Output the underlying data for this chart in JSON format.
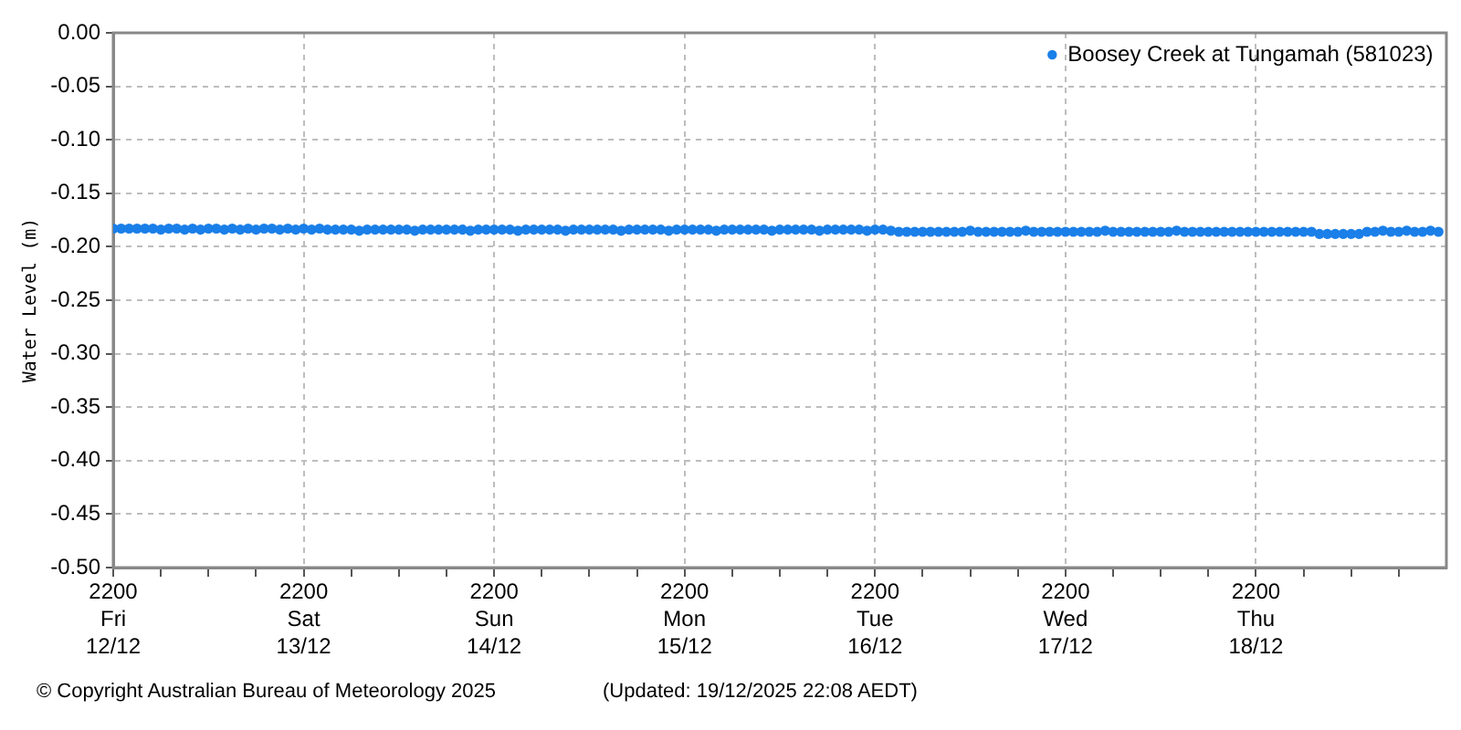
{
  "chart_data": {
    "type": "scatter",
    "ylabel": "Water Level (m)",
    "x": [
      "2025-12-12T22:00",
      "2025-12-12T23:00",
      "2025-12-13T00:00",
      "2025-12-13T01:00",
      "2025-12-13T02:00",
      "2025-12-13T03:00",
      "2025-12-13T04:00",
      "2025-12-13T05:00",
      "2025-12-13T06:00",
      "2025-12-13T07:00",
      "2025-12-13T08:00",
      "2025-12-13T09:00",
      "2025-12-13T10:00",
      "2025-12-13T11:00",
      "2025-12-13T12:00",
      "2025-12-13T13:00",
      "2025-12-13T14:00",
      "2025-12-13T15:00",
      "2025-12-13T16:00",
      "2025-12-13T17:00",
      "2025-12-13T18:00",
      "2025-12-13T19:00",
      "2025-12-13T20:00",
      "2025-12-13T21:00",
      "2025-12-13T22:00",
      "2025-12-13T23:00",
      "2025-12-14T00:00",
      "2025-12-14T01:00",
      "2025-12-14T02:00",
      "2025-12-14T03:00",
      "2025-12-14T04:00",
      "2025-12-14T05:00",
      "2025-12-14T06:00",
      "2025-12-14T07:00",
      "2025-12-14T08:00",
      "2025-12-14T09:00",
      "2025-12-14T10:00",
      "2025-12-14T11:00",
      "2025-12-14T12:00",
      "2025-12-14T13:00",
      "2025-12-14T14:00",
      "2025-12-14T15:00",
      "2025-12-14T16:00",
      "2025-12-14T17:00",
      "2025-12-14T18:00",
      "2025-12-14T19:00",
      "2025-12-14T20:00",
      "2025-12-14T21:00",
      "2025-12-14T22:00",
      "2025-12-14T23:00",
      "2025-12-15T00:00",
      "2025-12-15T01:00",
      "2025-12-15T02:00",
      "2025-12-15T03:00",
      "2025-12-15T04:00",
      "2025-12-15T05:00",
      "2025-12-15T06:00",
      "2025-12-15T07:00",
      "2025-12-15T08:00",
      "2025-12-15T09:00",
      "2025-12-15T10:00",
      "2025-12-15T11:00",
      "2025-12-15T12:00",
      "2025-12-15T13:00",
      "2025-12-15T14:00",
      "2025-12-15T15:00",
      "2025-12-15T16:00",
      "2025-12-15T17:00",
      "2025-12-15T18:00",
      "2025-12-15T19:00",
      "2025-12-15T20:00",
      "2025-12-15T21:00",
      "2025-12-15T22:00",
      "2025-12-15T23:00",
      "2025-12-16T00:00",
      "2025-12-16T01:00",
      "2025-12-16T02:00",
      "2025-12-16T03:00",
      "2025-12-16T04:00",
      "2025-12-16T05:00",
      "2025-12-16T06:00",
      "2025-12-16T07:00",
      "2025-12-16T08:00",
      "2025-12-16T09:00",
      "2025-12-16T10:00",
      "2025-12-16T11:00",
      "2025-12-16T12:00",
      "2025-12-16T13:00",
      "2025-12-16T14:00",
      "2025-12-16T15:00",
      "2025-12-16T16:00",
      "2025-12-16T17:00",
      "2025-12-16T18:00",
      "2025-12-16T19:00",
      "2025-12-16T20:00",
      "2025-12-16T21:00",
      "2025-12-16T22:00",
      "2025-12-16T23:00",
      "2025-12-17T00:00",
      "2025-12-17T01:00",
      "2025-12-17T02:00",
      "2025-12-17T03:00",
      "2025-12-17T04:00",
      "2025-12-17T05:00",
      "2025-12-17T06:00",
      "2025-12-17T07:00",
      "2025-12-17T08:00",
      "2025-12-17T09:00",
      "2025-12-17T10:00",
      "2025-12-17T11:00",
      "2025-12-17T12:00",
      "2025-12-17T13:00",
      "2025-12-17T14:00",
      "2025-12-17T15:00",
      "2025-12-17T16:00",
      "2025-12-17T17:00",
      "2025-12-17T18:00",
      "2025-12-17T19:00",
      "2025-12-17T20:00",
      "2025-12-17T21:00",
      "2025-12-17T22:00",
      "2025-12-17T23:00",
      "2025-12-18T00:00",
      "2025-12-18T01:00",
      "2025-12-18T02:00",
      "2025-12-18T03:00",
      "2025-12-18T04:00",
      "2025-12-18T05:00",
      "2025-12-18T06:00",
      "2025-12-18T07:00",
      "2025-12-18T08:00",
      "2025-12-18T09:00",
      "2025-12-18T10:00",
      "2025-12-18T11:00",
      "2025-12-18T12:00",
      "2025-12-18T13:00",
      "2025-12-18T14:00",
      "2025-12-18T15:00",
      "2025-12-18T16:00",
      "2025-12-18T17:00",
      "2025-12-18T18:00",
      "2025-12-18T19:00",
      "2025-12-18T20:00",
      "2025-12-18T21:00",
      "2025-12-18T22:00",
      "2025-12-18T23:00",
      "2025-12-19T00:00",
      "2025-12-19T01:00",
      "2025-12-19T02:00",
      "2025-12-19T03:00",
      "2025-12-19T04:00",
      "2025-12-19T05:00",
      "2025-12-19T06:00",
      "2025-12-19T07:00",
      "2025-12-19T08:00",
      "2025-12-19T09:00",
      "2025-12-19T10:00",
      "2025-12-19T11:00",
      "2025-12-19T12:00",
      "2025-12-19T13:00",
      "2025-12-19T14:00",
      "2025-12-19T15:00",
      "2025-12-19T16:00",
      "2025-12-19T17:00",
      "2025-12-19T18:00",
      "2025-12-19T19:00",
      "2025-12-19T20:00",
      "2025-12-19T21:00"
    ],
    "series": [
      {
        "name": "Boosey Creek at Tungamah (581023)",
        "color": "#1a7fe8",
        "values": [
          -0.183,
          -0.183,
          -0.183,
          -0.183,
          -0.183,
          -0.183,
          -0.184,
          -0.183,
          -0.183,
          -0.184,
          -0.183,
          -0.184,
          -0.183,
          -0.183,
          -0.184,
          -0.183,
          -0.184,
          -0.183,
          -0.184,
          -0.183,
          -0.183,
          -0.184,
          -0.183,
          -0.184,
          -0.183,
          -0.184,
          -0.183,
          -0.184,
          -0.184,
          -0.184,
          -0.184,
          -0.185,
          -0.184,
          -0.184,
          -0.184,
          -0.184,
          -0.184,
          -0.184,
          -0.185,
          -0.184,
          -0.184,
          -0.184,
          -0.184,
          -0.184,
          -0.184,
          -0.185,
          -0.184,
          -0.184,
          -0.184,
          -0.184,
          -0.184,
          -0.185,
          -0.184,
          -0.184,
          -0.184,
          -0.184,
          -0.184,
          -0.185,
          -0.184,
          -0.184,
          -0.184,
          -0.184,
          -0.184,
          -0.184,
          -0.185,
          -0.184,
          -0.184,
          -0.184,
          -0.184,
          -0.184,
          -0.185,
          -0.184,
          -0.184,
          -0.184,
          -0.184,
          -0.184,
          -0.185,
          -0.184,
          -0.184,
          -0.184,
          -0.184,
          -0.184,
          -0.184,
          -0.185,
          -0.184,
          -0.184,
          -0.184,
          -0.184,
          -0.184,
          -0.185,
          -0.184,
          -0.184,
          -0.184,
          -0.184,
          -0.184,
          -0.185,
          -0.184,
          -0.184,
          -0.185,
          -0.186,
          -0.186,
          -0.186,
          -0.186,
          -0.186,
          -0.186,
          -0.186,
          -0.186,
          -0.186,
          -0.185,
          -0.186,
          -0.186,
          -0.186,
          -0.186,
          -0.186,
          -0.186,
          -0.185,
          -0.186,
          -0.186,
          -0.186,
          -0.186,
          -0.186,
          -0.186,
          -0.186,
          -0.186,
          -0.186,
          -0.185,
          -0.186,
          -0.186,
          -0.186,
          -0.186,
          -0.186,
          -0.186,
          -0.186,
          -0.186,
          -0.185,
          -0.186,
          -0.186,
          -0.186,
          -0.186,
          -0.186,
          -0.186,
          -0.186,
          -0.186,
          -0.186,
          -0.186,
          -0.186,
          -0.186,
          -0.186,
          -0.186,
          -0.186,
          -0.186,
          -0.186,
          -0.188,
          -0.188,
          -0.188,
          -0.188,
          -0.188,
          -0.188,
          -0.186,
          -0.186,
          -0.185,
          -0.186,
          -0.186,
          -0.185,
          -0.186,
          -0.186,
          -0.185,
          -0.186
        ]
      }
    ],
    "xlim": [
      "2025-12-12T22:00",
      "2025-12-19T22:00"
    ],
    "xticks": [
      {
        "value": "2025-12-12T22:00",
        "label": "2200\nFri\n12/12"
      },
      {
        "value": "2025-12-13T04:00",
        "label": null
      },
      {
        "value": "2025-12-13T10:00",
        "label": null
      },
      {
        "value": "2025-12-13T16:00",
        "label": null
      },
      {
        "value": "2025-12-13T22:00",
        "label": "2200\nSat\n13/12"
      },
      {
        "value": "2025-12-14T04:00",
        "label": null
      },
      {
        "value": "2025-12-14T10:00",
        "label": null
      },
      {
        "value": "2025-12-14T16:00",
        "label": null
      },
      {
        "value": "2025-12-14T22:00",
        "label": "2200\nSun\n14/12"
      },
      {
        "value": "2025-12-15T04:00",
        "label": null
      },
      {
        "value": "2025-12-15T10:00",
        "label": null
      },
      {
        "value": "2025-12-15T16:00",
        "label": null
      },
      {
        "value": "2025-12-15T22:00",
        "label": "2200\nMon\n15/12"
      },
      {
        "value": "2025-12-16T04:00",
        "label": null
      },
      {
        "value": "2025-12-16T10:00",
        "label": null
      },
      {
        "value": "2025-12-16T16:00",
        "label": null
      },
      {
        "value": "2025-12-16T22:00",
        "label": "2200\nTue\n16/12"
      },
      {
        "value": "2025-12-17T04:00",
        "label": null
      },
      {
        "value": "2025-12-17T10:00",
        "label": null
      },
      {
        "value": "2025-12-17T16:00",
        "label": null
      },
      {
        "value": "2025-12-17T22:00",
        "label": "2200\nWed\n17/12"
      },
      {
        "value": "2025-12-18T04:00",
        "label": null
      },
      {
        "value": "2025-12-18T10:00",
        "label": null
      },
      {
        "value": "2025-12-18T16:00",
        "label": null
      },
      {
        "value": "2025-12-18T22:00",
        "label": "2200\nThu\n18/12"
      },
      {
        "value": "2025-12-19T04:00",
        "label": null
      },
      {
        "value": "2025-12-19T10:00",
        "label": null
      },
      {
        "value": "2025-12-19T16:00",
        "label": null
      }
    ],
    "ylim": [
      -0.5,
      0
    ],
    "yticks": [
      {
        "value": -0.5,
        "label": "-0.50"
      },
      {
        "value": -0.45,
        "label": "-0.45"
      },
      {
        "value": -0.4,
        "label": "-0.40"
      },
      {
        "value": -0.35,
        "label": "-0.35"
      },
      {
        "value": -0.3,
        "label": "-0.30"
      },
      {
        "value": -0.25,
        "label": "-0.25"
      },
      {
        "value": -0.2,
        "label": "-0.20"
      },
      {
        "value": -0.15,
        "label": "-0.15"
      },
      {
        "value": -0.1,
        "label": "-0.10"
      },
      {
        "value": -0.05,
        "label": "-0.05"
      },
      {
        "value": 0,
        "label": "0.00"
      }
    ],
    "grid": true,
    "legend": "top right",
    "marker": "circle",
    "annotations": [
      "© Copyright Australian Bureau of Meteorology 2025",
      "(Updated: 19/12/2025 22:08 AEDT)"
    ]
  }
}
